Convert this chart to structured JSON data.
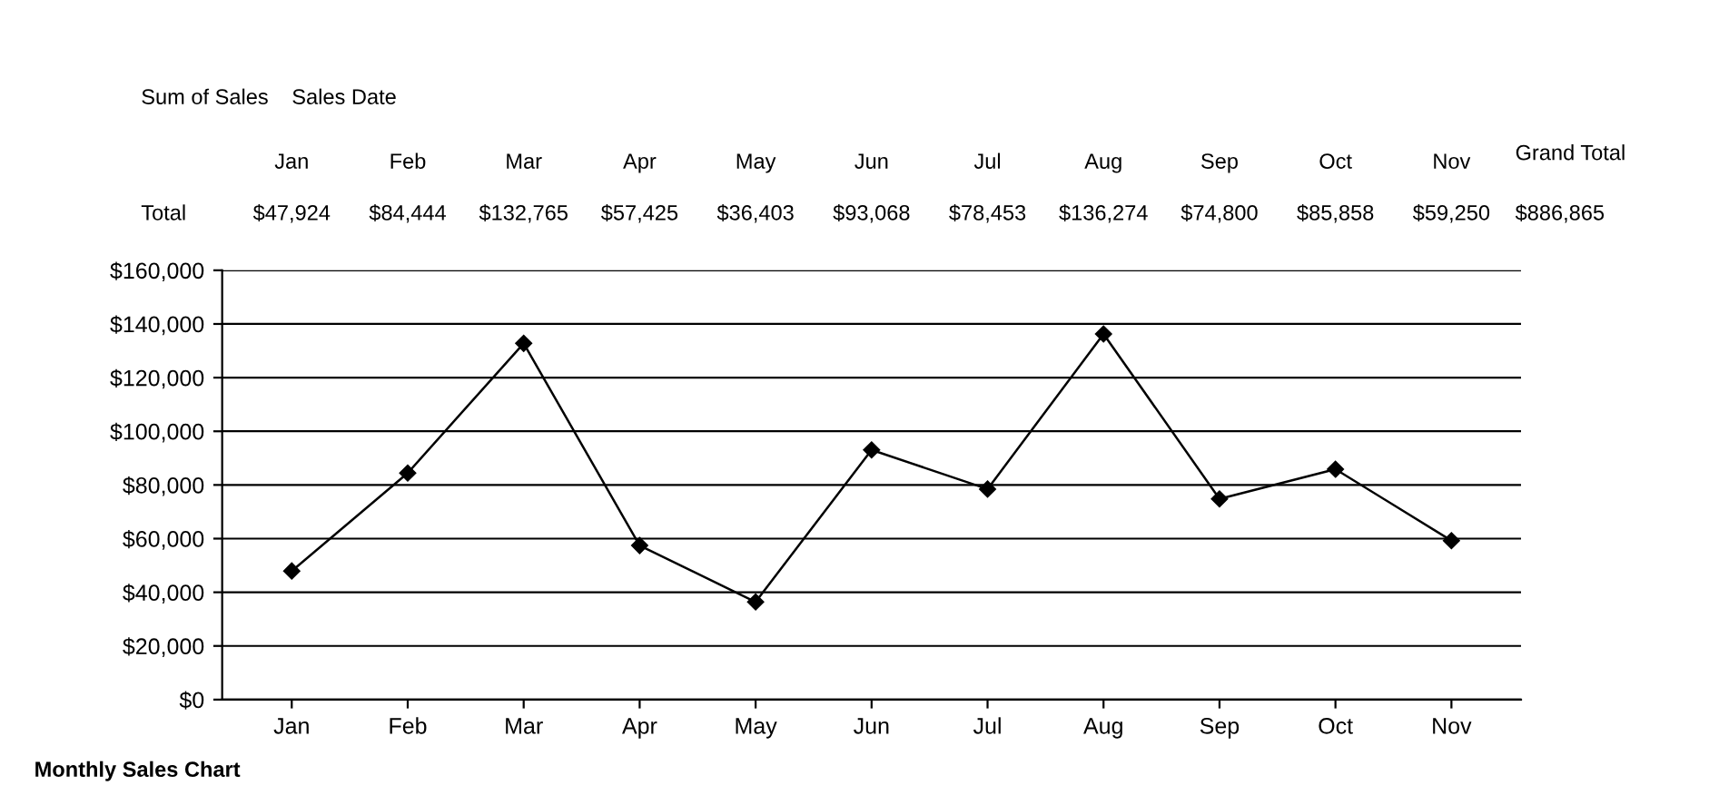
{
  "chart_data": {
    "type": "line",
    "categories": [
      "Jan",
      "Feb",
      "Mar",
      "Apr",
      "May",
      "Jun",
      "Jul",
      "Aug",
      "Sep",
      "Oct",
      "Nov"
    ],
    "series": [
      {
        "color": "#000000",
        "values": [
          47924,
          84444,
          132765,
          57425,
          36403,
          93068,
          78453,
          136274,
          74800,
          85858,
          59250
        ],
        "value_labels": [
          "$47,924",
          "$84,444",
          "$132,765",
          "$57,425",
          "$36,403",
          "$93,068",
          "$78,453",
          "$136,274",
          "$74,800",
          "$85,858",
          "$59,250"
        ]
      }
    ],
    "ylim": [
      0,
      160000
    ],
    "yticks": [
      {
        "value": 0,
        "label": "$0"
      },
      {
        "value": 20000,
        "label": "$20,000"
      },
      {
        "value": 40000,
        "label": "$40,000"
      },
      {
        "value": 60000,
        "label": "$60,000"
      },
      {
        "value": 80000,
        "label": "$80,000"
      },
      {
        "value": 100000,
        "label": "$100,000"
      },
      {
        "value": 120000,
        "label": "$120,000"
      },
      {
        "value": 140000,
        "label": "$140,000"
      },
      {
        "value": 160000,
        "label": "$160,000"
      }
    ],
    "grid": "y",
    "marker": "diamond",
    "line_style": "solid",
    "legend": false,
    "annotations": [
      "Sum of Sales",
      "Sales Date",
      "Total",
      "Grand Total",
      "$886,865",
      "Monthly Sales Chart"
    ]
  }
}
